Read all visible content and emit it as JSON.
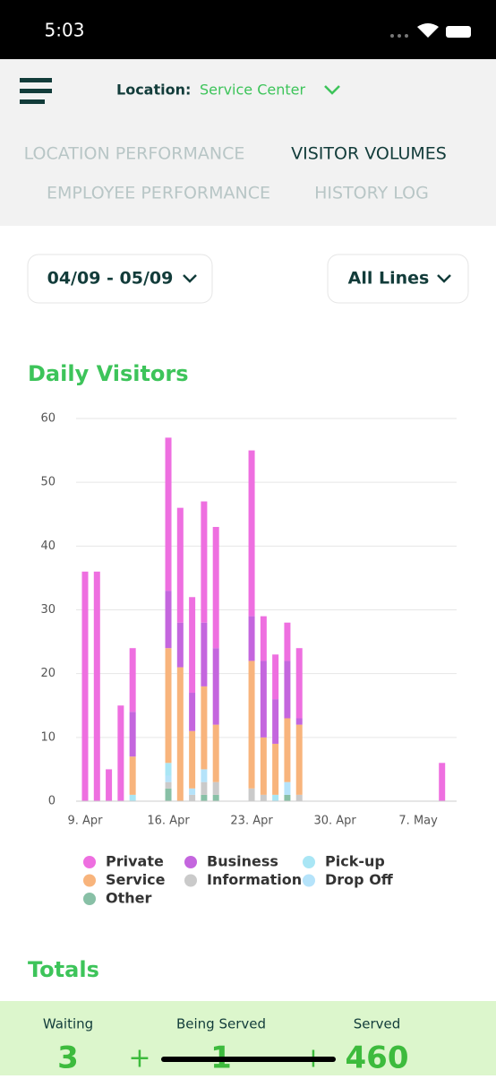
{
  "status_bar": {
    "time": "5:03"
  },
  "header": {
    "location_label": "Location:",
    "location_value": "Service Center",
    "tabs": [
      "LOCATION PERFORMANCE",
      "VISITOR VOLUMES",
      "EMPLOYEE PERFORMANCE",
      "HISTORY LOG"
    ]
  },
  "filters": {
    "date_range": "04/09 - 05/09",
    "lines": "All Lines"
  },
  "chart_data": {
    "type": "stacked-bar",
    "title": "Daily Visitors",
    "categories": [
      "9. Apr",
      null,
      null,
      null,
      null,
      null,
      null,
      "16. Apr",
      null,
      null,
      null,
      null,
      null,
      null,
      "23. Apr",
      null,
      null,
      null,
      null,
      null,
      null,
      "30. Apr",
      null,
      null,
      null,
      null,
      null,
      null,
      "7. May",
      null,
      null
    ],
    "series": [
      {
        "name": "Private",
        "color": "#ee6fe0",
        "values": [
          36,
          36,
          5,
          15,
          10,
          null,
          null,
          24,
          18,
          15,
          19,
          19,
          null,
          null,
          26,
          7,
          7,
          6,
          11,
          null,
          null,
          null,
          null,
          null,
          null,
          null,
          null,
          null,
          null,
          null,
          6
        ]
      },
      {
        "name": "Business",
        "color": "#c466de",
        "values": [
          null,
          null,
          null,
          null,
          7,
          null,
          null,
          9,
          7,
          6,
          10,
          12,
          null,
          null,
          7,
          12,
          7,
          9,
          1,
          null,
          null,
          null,
          null,
          null,
          null,
          null,
          null,
          null,
          null,
          null,
          null
        ]
      },
      {
        "name": "Pick-up",
        "color": "#a9e6f5",
        "values": [
          null,
          null,
          null,
          null,
          1,
          null,
          null,
          2,
          null,
          null,
          null,
          null,
          null,
          null,
          null,
          null,
          1,
          null,
          null,
          null,
          null,
          null,
          null,
          null,
          null,
          null,
          null,
          null,
          null,
          null,
          null
        ]
      },
      {
        "name": "Service",
        "color": "#f8b47c",
        "values": [
          null,
          null,
          null,
          null,
          6,
          null,
          null,
          18,
          21,
          9,
          13,
          9,
          null,
          null,
          20,
          9,
          8,
          10,
          11,
          null,
          null,
          null,
          null,
          null,
          null,
          null,
          null,
          null,
          null,
          null,
          null
        ]
      },
      {
        "name": "Information",
        "color": "#cacaca",
        "values": [
          null,
          null,
          null,
          null,
          null,
          null,
          null,
          1,
          null,
          1,
          2,
          2,
          null,
          null,
          2,
          1,
          null,
          null,
          1,
          null,
          null,
          null,
          null,
          null,
          null,
          null,
          null,
          null,
          null,
          null,
          null
        ]
      },
      {
        "name": "Drop Off",
        "color": "#b5e3fa",
        "values": [
          null,
          null,
          null,
          null,
          null,
          null,
          null,
          1,
          null,
          1,
          2,
          null,
          null,
          null,
          null,
          null,
          null,
          2,
          null,
          null,
          null,
          null,
          null,
          null,
          null,
          null,
          null,
          null,
          null,
          null,
          null
        ]
      },
      {
        "name": "Other",
        "color": "#88c0a6",
        "values": [
          null,
          null,
          null,
          null,
          null,
          null,
          null,
          2,
          null,
          null,
          1,
          1,
          null,
          null,
          null,
          null,
          null,
          1,
          null,
          null,
          null,
          null,
          null,
          null,
          null,
          null,
          null,
          null,
          null,
          null,
          null
        ]
      }
    ],
    "ylim": [
      0,
      60
    ],
    "yticks": [
      0,
      10,
      20,
      30,
      40,
      50,
      60
    ],
    "grid": true
  },
  "totals": {
    "title": "Totals",
    "separator": "+",
    "items": [
      {
        "label": "Waiting",
        "value": 3
      },
      {
        "label": "Being Served",
        "value": 1
      },
      {
        "label": "Served",
        "value": 460
      }
    ]
  }
}
